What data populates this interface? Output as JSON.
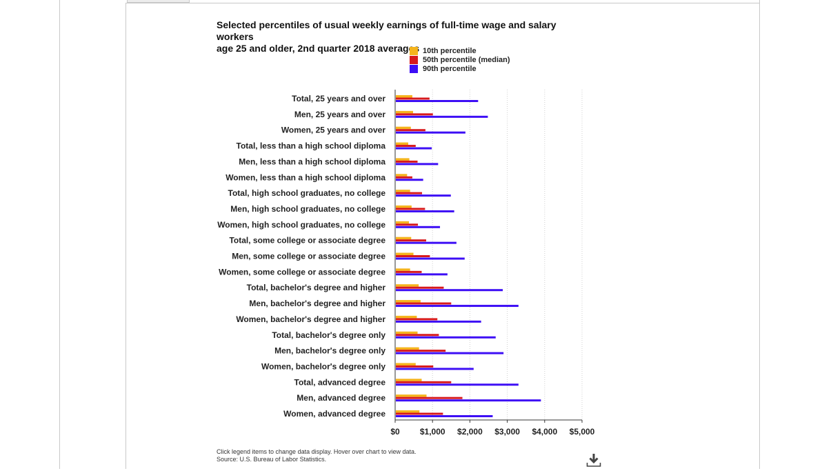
{
  "chart_data": {
    "type": "bar",
    "orientation": "horizontal",
    "title_lines": [
      "Selected percentiles of usual weekly earnings of full-time wage and salary workers",
      "age 25 and older, 2nd quarter 2018 averages"
    ],
    "categories": [
      "Total, 25 years and over",
      "Men, 25 years and over",
      "Women, 25 years and over",
      "Total, less than a high school diploma",
      "Men, less than a high school diploma",
      "Women, less than a high school diploma",
      "Total, high school graduates, no college",
      "Men, high school graduates, no college",
      "Women, high school graduates, no college",
      "Total, some college or associate degree",
      "Men, some college or associate degree",
      "Women, some college or associate degree",
      "Total, bachelor's degree and higher",
      "Men, bachelor's degree and higher",
      "Women, bachelor's degree and higher",
      "Total, bachelor's degree only",
      "Men, bachelor's degree only",
      "Women, bachelor's degree only",
      "Total, advanced degree",
      "Men, advanced degree",
      "Women, advanced degree"
    ],
    "series": [
      {
        "name": "10th percentile",
        "color": "#f5b41c",
        "values": [
          460,
          480,
          420,
          350,
          380,
          320,
          400,
          440,
          370,
          430,
          490,
          400,
          630,
          680,
          580,
          600,
          640,
          550,
          710,
          840,
          650
        ]
      },
      {
        "name": "50th percentile (median)",
        "color": "#d7191c",
        "values": [
          920,
          1010,
          810,
          550,
          600,
          460,
          720,
          800,
          610,
          830,
          930,
          710,
          1300,
          1500,
          1130,
          1170,
          1350,
          1020,
          1500,
          1800,
          1280
        ]
      },
      {
        "name": "90th percentile",
        "color": "#3d0ef5",
        "values": [
          2220,
          2480,
          1880,
          980,
          1150,
          750,
          1490,
          1580,
          1200,
          1640,
          1860,
          1400,
          2880,
          3300,
          2300,
          2690,
          2900,
          2100,
          3300,
          3900,
          2610
        ]
      }
    ],
    "x_ticks": [
      "$0",
      "$1,000",
      "$2,000",
      "$3,000",
      "$4,000",
      "$5,000"
    ],
    "xlim": [
      0,
      5000
    ],
    "grid": "vertical dotted",
    "legend_position": "top"
  },
  "footnote": {
    "line1": "Click legend items to change data display. Hover over chart to view data.",
    "line2": "Source: U.S. Bureau of Labor Statistics."
  },
  "icons": {
    "download": "download-icon"
  }
}
